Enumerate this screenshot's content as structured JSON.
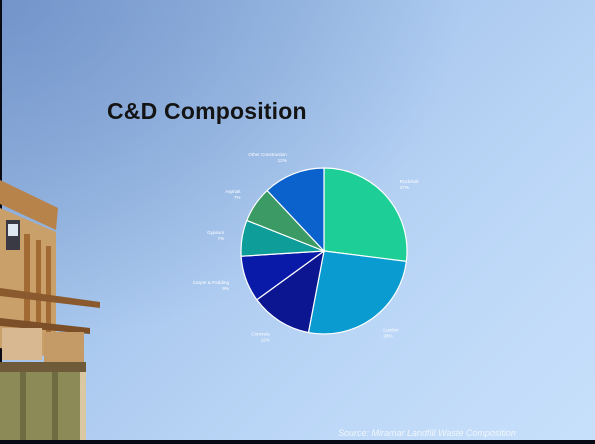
{
  "slide": {
    "title": "C&D Composition",
    "source": "Source:  Miramar Landfill Waste Composition"
  },
  "chart_data": {
    "type": "pie",
    "title": "",
    "slices": [
      {
        "label": "Rock/soil",
        "value": 27,
        "pct_label": "27%",
        "color": "#1dcf97"
      },
      {
        "label": "Lumber",
        "value": 26,
        "pct_label": "26%",
        "color": "#0a9bd0"
      },
      {
        "label": "Concrete",
        "value": 12,
        "pct_label": "12%",
        "color": "#0b1690"
      },
      {
        "label": "Carpet & Padding",
        "value": 9,
        "pct_label": "9%",
        "color": "#0a1aa8"
      },
      {
        "label": "Gypsum",
        "value": 7,
        "pct_label": "7%",
        "color": "#0f9d9a"
      },
      {
        "label": "Asphalt",
        "value": 7,
        "pct_label": "7%",
        "color": "#3c9a64"
      },
      {
        "label": "Other Construction",
        "value": 12,
        "pct_label": "12%",
        "color": "#0c62cc"
      }
    ]
  }
}
